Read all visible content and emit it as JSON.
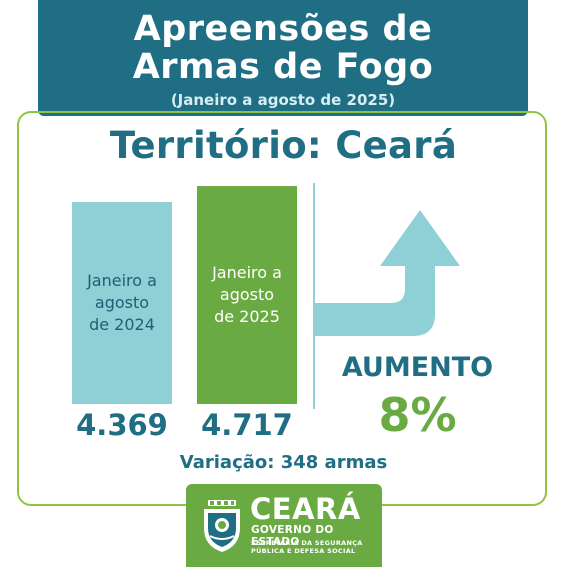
{
  "header": {
    "title_line1": "Apreensões de",
    "title_line2": "Armas de Fogo",
    "subtitle": "(Janeiro a agosto de 2025)"
  },
  "territory": "Território: Ceará",
  "chart_data": {
    "type": "bar",
    "categories": [
      "Janeiro a agosto de 2024",
      "Janeiro a agosto de 2025"
    ],
    "category_lines": [
      [
        "Janeiro a",
        "agosto",
        "de 2024"
      ],
      [
        "Janeiro a",
        "agosto",
        "de 2025"
      ]
    ],
    "values": [
      4369,
      4717
    ],
    "value_labels": [
      "4.369",
      "4.717"
    ],
    "colors": [
      "#8fcfd6",
      "#6aaa43"
    ],
    "ylim": [
      0,
      5100
    ],
    "xlabel": "",
    "ylabel": ""
  },
  "indicator": {
    "label": "AUMENTO",
    "percent": "8%",
    "icon": "up-arrow-icon",
    "color_label": "#1f6e83",
    "color_percent": "#6aaa43"
  },
  "variation": "Variação: 348 armas",
  "logo": {
    "title": "CEARÁ",
    "subtitle": "GOVERNO DO ESTADO",
    "secretaria_line1": "SECRETARIA DA SEGURANÇA",
    "secretaria_line2": "PÚBLICA E DEFESA SOCIAL"
  },
  "colors": {
    "primary": "#1f6e83",
    "accent_green": "#6aaa43",
    "accent_light": "#8fcfd6"
  }
}
